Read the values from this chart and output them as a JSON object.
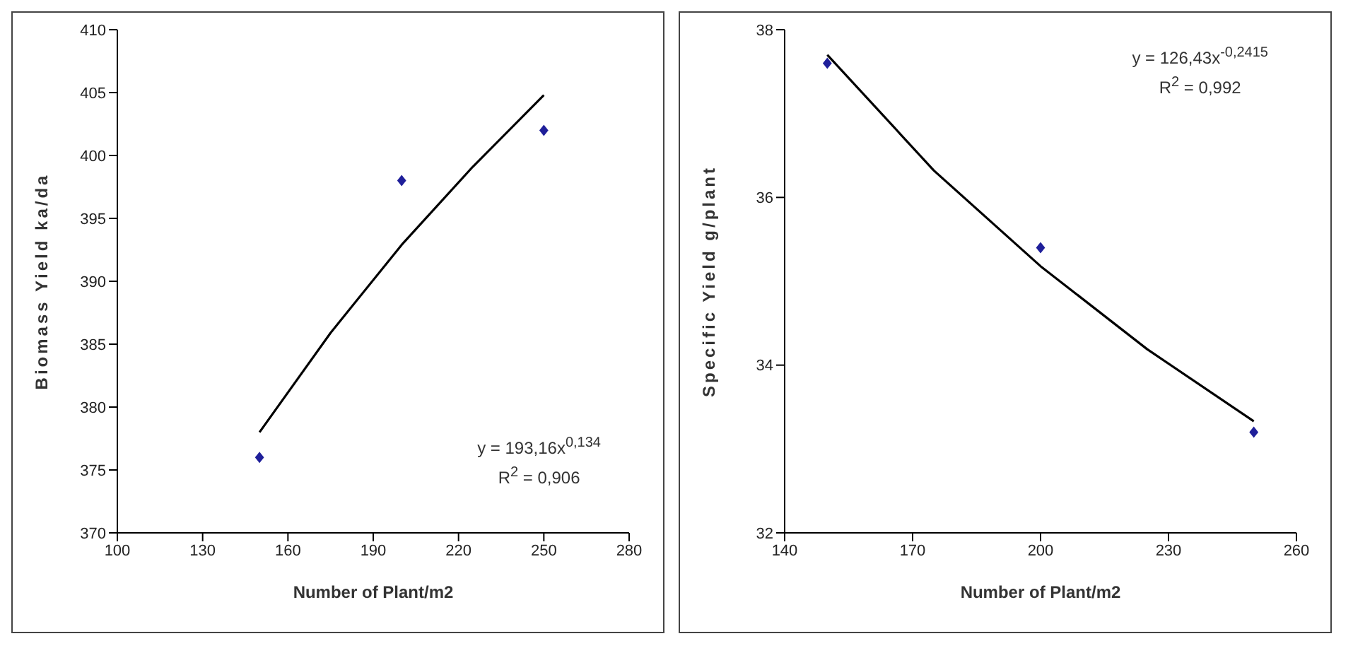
{
  "chart_data": [
    {
      "type": "scatter",
      "xlabel": "Number of Plant/m2",
      "ylabel": "Biomass Yield ka/da",
      "xlim": [
        100,
        280
      ],
      "xticks": [
        100,
        130,
        160,
        190,
        220,
        250,
        280
      ],
      "ylim": [
        370,
        410
      ],
      "yticks": [
        370,
        375,
        380,
        385,
        390,
        395,
        400,
        405,
        410
      ],
      "grid": false,
      "legend": false,
      "marker": "diamond",
      "annotations": [
        "y = 193,16x$^{0,134}$",
        "R$^{2}$ = 0,906"
      ],
      "series": [
        {
          "color": "#1f1f9a",
          "x": [
            150,
            200,
            250
          ],
          "values": [
            376,
            398,
            402
          ]
        },
        {
          "type": "line",
          "color": "#000000",
          "marker": "none",
          "line_style": "solid",
          "x": [
            150,
            175,
            200,
            225,
            250
          ],
          "values": [
            378.0,
            385.9,
            392.9,
            399.1,
            404.8
          ]
        }
      ]
    },
    {
      "type": "scatter",
      "xlabel": "Number of Plant/m2",
      "ylabel": "Specific Yield g/plant",
      "xlim": [
        140,
        260
      ],
      "xticks": [
        140,
        170,
        200,
        230,
        260
      ],
      "ylim": [
        32,
        38
      ],
      "yticks": [
        32,
        34,
        36,
        38
      ],
      "grid": false,
      "legend": false,
      "marker": "diamond",
      "annotations": [
        "y = 126,43x$^{-0,2415}$",
        "R$^{2}$ = 0,992"
      ],
      "series": [
        {
          "color": "#1f1f9a",
          "x": [
            150,
            200,
            250
          ],
          "values": [
            37.6,
            35.4,
            33.2
          ]
        },
        {
          "type": "line",
          "color": "#000000",
          "marker": "none",
          "line_style": "solid",
          "x": [
            150,
            175,
            200,
            225,
            250
          ],
          "values": [
            37.7,
            36.32,
            35.18,
            34.19,
            33.33
          ]
        }
      ]
    }
  ]
}
